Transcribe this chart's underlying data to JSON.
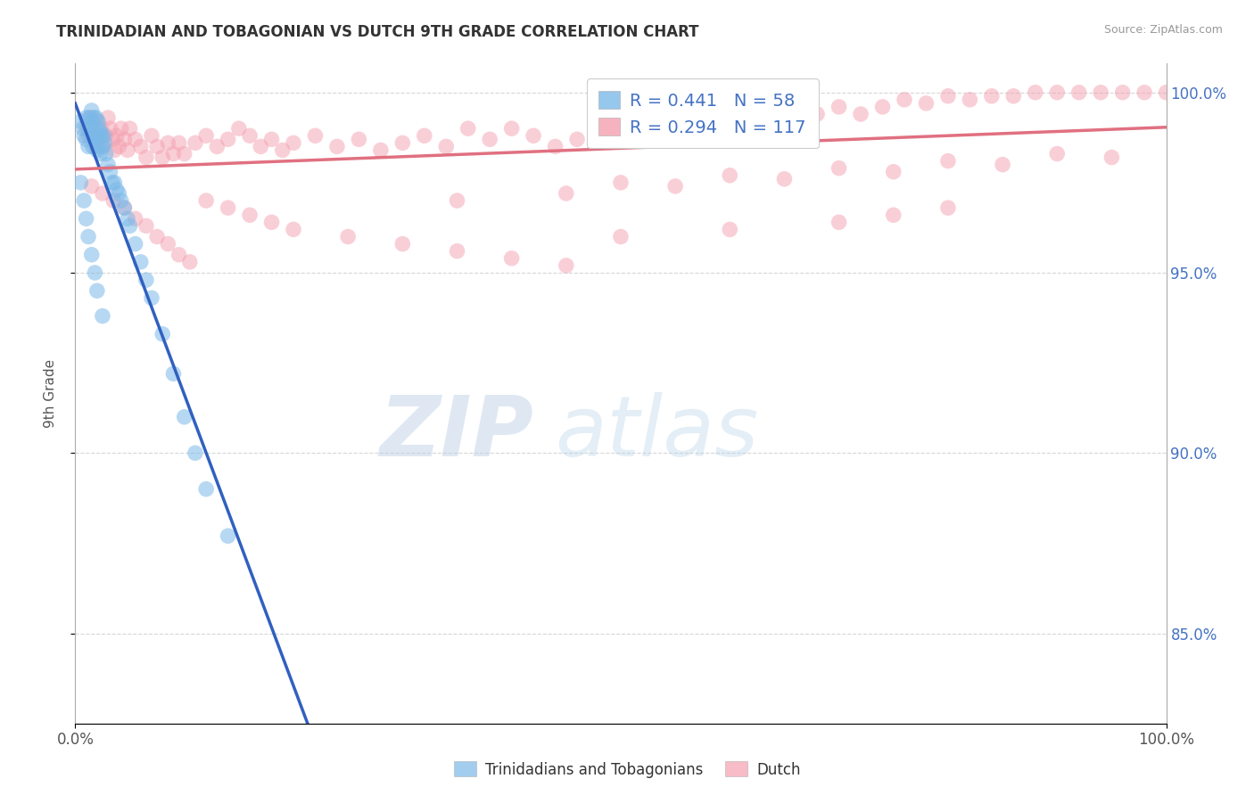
{
  "title": "TRINIDADIAN AND TOBAGONIAN VS DUTCH 9TH GRADE CORRELATION CHART",
  "source_text": "Source: ZipAtlas.com",
  "ylabel": "9th Grade",
  "xmin": 0.0,
  "xmax": 1.0,
  "ymin": 0.825,
  "ymax": 1.008,
  "yticks": [
    0.85,
    0.9,
    0.95,
    1.0
  ],
  "ytick_labels": [
    "85.0%",
    "90.0%",
    "95.0%",
    "100.0%"
  ],
  "xticks": [
    0.0,
    1.0
  ],
  "xtick_labels": [
    "0.0%",
    "100.0%"
  ],
  "blue_R": 0.441,
  "blue_N": 58,
  "pink_R": 0.294,
  "pink_N": 117,
  "blue_color": "#7cb9e8",
  "pink_color": "#f4a0b0",
  "blue_line_color": "#3060c0",
  "pink_line_color": "#e07080",
  "grid_color": "#cccccc",
  "legend_label_blue": "Trinidadians and Tobagonians",
  "legend_label_pink": "Dutch",
  "watermark_zip": "ZIP",
  "watermark_atlas": "atlas",
  "blue_x": [
    0.005,
    0.007,
    0.008,
    0.01,
    0.01,
    0.012,
    0.012,
    0.013,
    0.014,
    0.015,
    0.015,
    0.016,
    0.016,
    0.017,
    0.018,
    0.018,
    0.019,
    0.02,
    0.02,
    0.021,
    0.021,
    0.022,
    0.022,
    0.023,
    0.023,
    0.024,
    0.025,
    0.026,
    0.027,
    0.028,
    0.03,
    0.032,
    0.034,
    0.036,
    0.038,
    0.04,
    0.042,
    0.045,
    0.048,
    0.05,
    0.055,
    0.06,
    0.065,
    0.07,
    0.08,
    0.09,
    0.1,
    0.11,
    0.12,
    0.14,
    0.005,
    0.008,
    0.01,
    0.012,
    0.015,
    0.018,
    0.02,
    0.025
  ],
  "blue_y": [
    0.992,
    0.99,
    0.988,
    0.993,
    0.987,
    0.99,
    0.985,
    0.993,
    0.988,
    0.995,
    0.992,
    0.989,
    0.985,
    0.993,
    0.99,
    0.987,
    0.993,
    0.988,
    0.984,
    0.992,
    0.987,
    0.99,
    0.985,
    0.989,
    0.983,
    0.988,
    0.985,
    0.988,
    0.986,
    0.983,
    0.98,
    0.978,
    0.975,
    0.975,
    0.973,
    0.972,
    0.97,
    0.968,
    0.965,
    0.963,
    0.958,
    0.953,
    0.948,
    0.943,
    0.933,
    0.922,
    0.91,
    0.9,
    0.89,
    0.877,
    0.975,
    0.97,
    0.965,
    0.96,
    0.955,
    0.95,
    0.945,
    0.938
  ],
  "pink_x": [
    0.01,
    0.012,
    0.014,
    0.016,
    0.018,
    0.02,
    0.022,
    0.024,
    0.026,
    0.028,
    0.03,
    0.032,
    0.034,
    0.036,
    0.038,
    0.04,
    0.042,
    0.045,
    0.048,
    0.05,
    0.055,
    0.06,
    0.065,
    0.07,
    0.075,
    0.08,
    0.085,
    0.09,
    0.095,
    0.1,
    0.11,
    0.12,
    0.13,
    0.14,
    0.15,
    0.16,
    0.17,
    0.18,
    0.19,
    0.2,
    0.22,
    0.24,
    0.26,
    0.28,
    0.3,
    0.32,
    0.34,
    0.36,
    0.38,
    0.4,
    0.42,
    0.44,
    0.46,
    0.48,
    0.5,
    0.52,
    0.54,
    0.56,
    0.58,
    0.6,
    0.62,
    0.64,
    0.66,
    0.68,
    0.7,
    0.72,
    0.74,
    0.76,
    0.78,
    0.8,
    0.82,
    0.84,
    0.86,
    0.88,
    0.9,
    0.92,
    0.94,
    0.96,
    0.98,
    1.0,
    0.015,
    0.025,
    0.035,
    0.045,
    0.055,
    0.065,
    0.075,
    0.085,
    0.095,
    0.105,
    0.12,
    0.14,
    0.16,
    0.18,
    0.2,
    0.25,
    0.3,
    0.35,
    0.4,
    0.45,
    0.5,
    0.6,
    0.7,
    0.8,
    0.9,
    0.35,
    0.45,
    0.55,
    0.65,
    0.75,
    0.85,
    0.95,
    0.5,
    0.6,
    0.7,
    0.75,
    0.8
  ],
  "pink_y": [
    0.99,
    0.988,
    0.993,
    0.988,
    0.985,
    0.992,
    0.987,
    0.99,
    0.985,
    0.988,
    0.993,
    0.99,
    0.987,
    0.984,
    0.988,
    0.985,
    0.99,
    0.987,
    0.984,
    0.99,
    0.987,
    0.985,
    0.982,
    0.988,
    0.985,
    0.982,
    0.986,
    0.983,
    0.986,
    0.983,
    0.986,
    0.988,
    0.985,
    0.987,
    0.99,
    0.988,
    0.985,
    0.987,
    0.984,
    0.986,
    0.988,
    0.985,
    0.987,
    0.984,
    0.986,
    0.988,
    0.985,
    0.99,
    0.987,
    0.99,
    0.988,
    0.985,
    0.987,
    0.989,
    0.991,
    0.993,
    0.99,
    0.993,
    0.991,
    0.994,
    0.992,
    0.994,
    0.996,
    0.994,
    0.996,
    0.994,
    0.996,
    0.998,
    0.997,
    0.999,
    0.998,
    0.999,
    0.999,
    1.0,
    1.0,
    1.0,
    1.0,
    1.0,
    1.0,
    1.0,
    0.974,
    0.972,
    0.97,
    0.968,
    0.965,
    0.963,
    0.96,
    0.958,
    0.955,
    0.953,
    0.97,
    0.968,
    0.966,
    0.964,
    0.962,
    0.96,
    0.958,
    0.956,
    0.954,
    0.952,
    0.975,
    0.977,
    0.979,
    0.981,
    0.983,
    0.97,
    0.972,
    0.974,
    0.976,
    0.978,
    0.98,
    0.982,
    0.96,
    0.962,
    0.964,
    0.966,
    0.968
  ]
}
